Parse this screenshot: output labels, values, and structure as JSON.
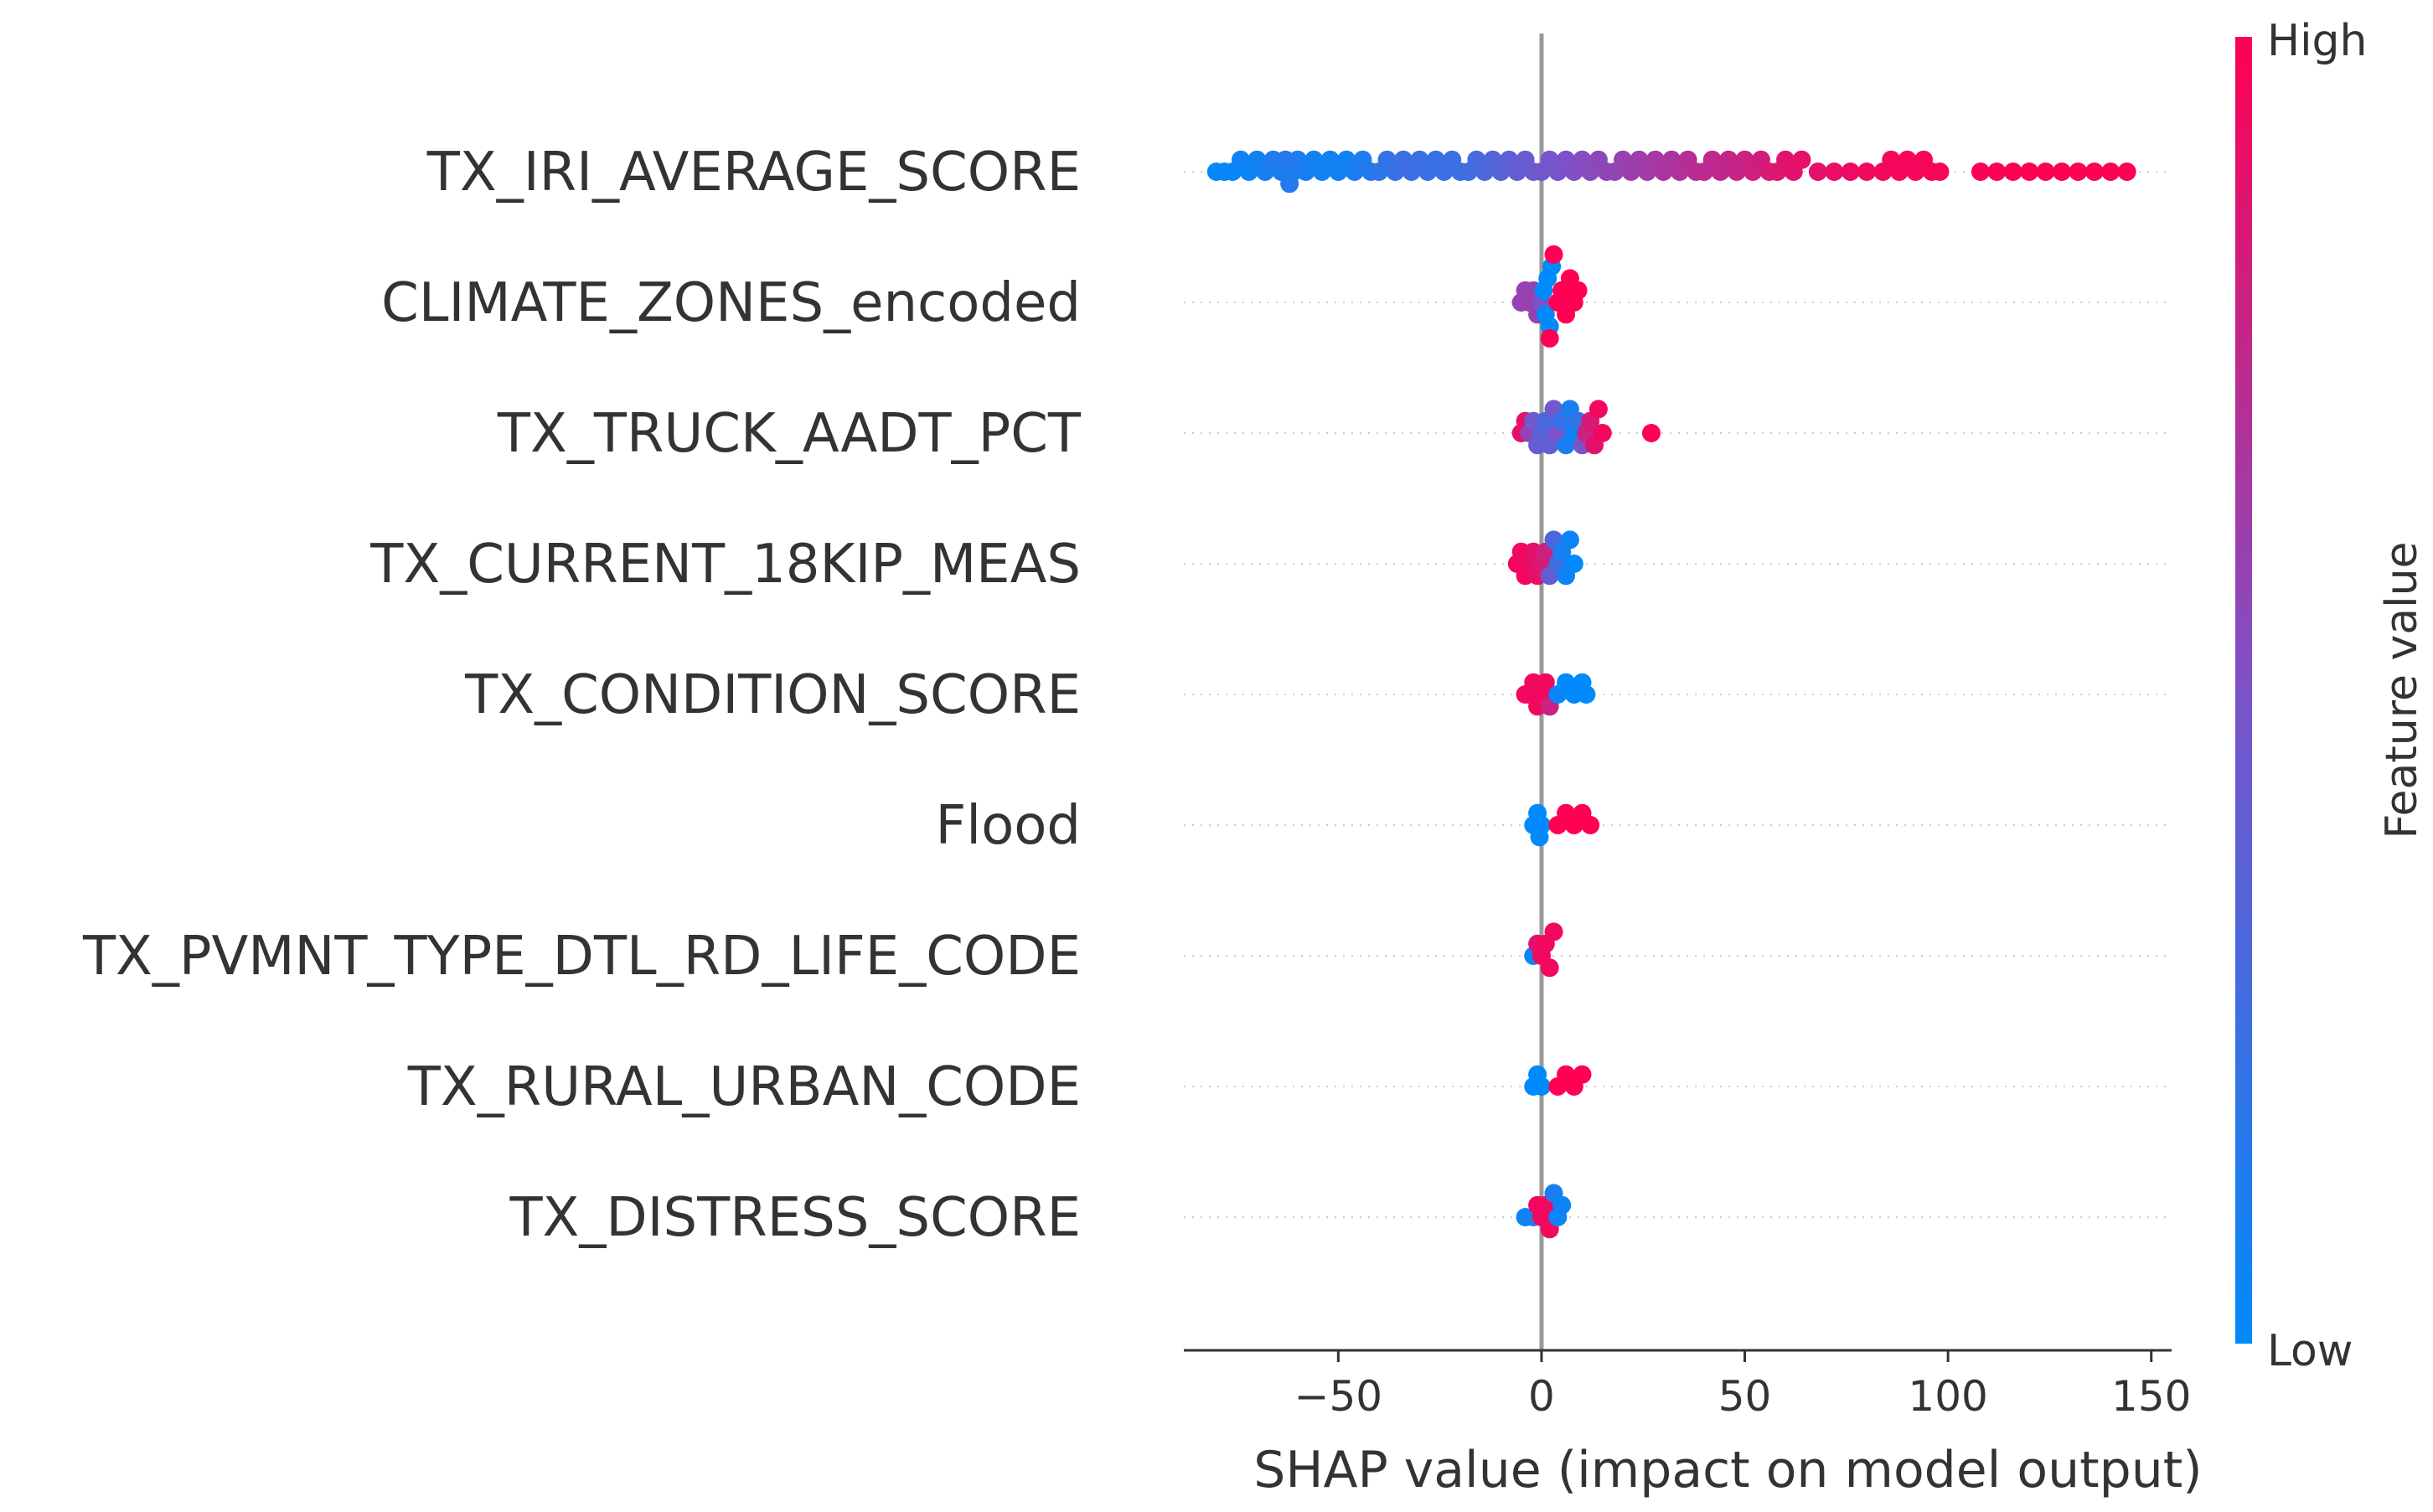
{
  "chart_data": {
    "type": "scatter",
    "subtype": "shap_beeswarm",
    "title": "",
    "xlabel": "SHAP value (impact on model output)",
    "ylabel": "",
    "xlim": [
      -88,
      155
    ],
    "xticks": [
      -50,
      0,
      50,
      100,
      150
    ],
    "xtick_labels": [
      "−50",
      "0",
      "50",
      "100",
      "150"
    ],
    "zero_line": 0,
    "colorbar": {
      "label": "Feature value",
      "high_label": "High",
      "low_label": "Low",
      "low_color": "#008afb",
      "mid_color": "#7c52c8",
      "high_color": "#ff0052"
    },
    "features": [
      {
        "name": "TX_IRI_AVERAGE_SCORE",
        "points": [
          [
            -80,
            0.02
          ],
          [
            -78,
            0.05
          ],
          [
            -76,
            0.03
          ],
          [
            -74,
            0.06
          ],
          [
            -72,
            0.05
          ],
          [
            -70,
            0.08
          ],
          [
            -68,
            0.1
          ],
          [
            -66,
            0.12
          ],
          [
            -64,
            0.1
          ],
          [
            -63,
            0.15
          ],
          [
            -62,
            0.14
          ],
          [
            -61,
            0.12
          ],
          [
            -60,
            0.13
          ],
          [
            -58,
            0.1
          ],
          [
            -56,
            0.09
          ],
          [
            -54,
            0.07
          ],
          [
            -52,
            0.06
          ],
          [
            -50,
            0.08
          ],
          [
            -48,
            0.07
          ],
          [
            -46,
            0.1
          ],
          [
            -44,
            0.12
          ],
          [
            -42,
            0.15
          ],
          [
            -40,
            0.18
          ],
          [
            -38,
            0.2
          ],
          [
            -36,
            0.22
          ],
          [
            -34,
            0.24
          ],
          [
            -32,
            0.25
          ],
          [
            -30,
            0.24
          ],
          [
            -28,
            0.23
          ],
          [
            -26,
            0.22
          ],
          [
            -24,
            0.24
          ],
          [
            -22,
            0.25
          ],
          [
            -20,
            0.23
          ],
          [
            -18,
            0.26
          ],
          [
            -16,
            0.28
          ],
          [
            -14,
            0.3
          ],
          [
            -12,
            0.33
          ],
          [
            -10,
            0.35
          ],
          [
            -8,
            0.38
          ],
          [
            -6,
            0.4
          ],
          [
            -4,
            0.42
          ],
          [
            -2,
            0.44
          ],
          [
            0,
            0.46
          ],
          [
            2,
            0.47
          ],
          [
            4,
            0.48
          ],
          [
            6,
            0.5
          ],
          [
            8,
            0.52
          ],
          [
            10,
            0.53
          ],
          [
            12,
            0.55
          ],
          [
            14,
            0.56
          ],
          [
            16,
            0.57
          ],
          [
            18,
            0.58
          ],
          [
            20,
            0.6
          ],
          [
            22,
            0.62
          ],
          [
            24,
            0.63
          ],
          [
            26,
            0.64
          ],
          [
            28,
            0.66
          ],
          [
            30,
            0.67
          ],
          [
            32,
            0.68
          ],
          [
            34,
            0.7
          ],
          [
            36,
            0.72
          ],
          [
            38,
            0.73
          ],
          [
            40,
            0.74
          ],
          [
            42,
            0.75
          ],
          [
            44,
            0.76
          ],
          [
            46,
            0.77
          ],
          [
            48,
            0.78
          ],
          [
            50,
            0.8
          ],
          [
            52,
            0.82
          ],
          [
            54,
            0.83
          ],
          [
            56,
            0.85
          ],
          [
            58,
            0.86
          ],
          [
            60,
            0.88
          ],
          [
            62,
            0.89
          ],
          [
            64,
            0.9
          ],
          [
            68,
            0.9
          ],
          [
            72,
            0.92
          ],
          [
            76,
            0.93
          ],
          [
            80,
            0.94
          ],
          [
            84,
            0.95
          ],
          [
            86,
            0.96
          ],
          [
            88,
            0.96
          ],
          [
            90,
            0.97
          ],
          [
            92,
            0.96
          ],
          [
            94,
            0.97
          ],
          [
            96,
            0.98
          ],
          [
            98,
            0.97
          ],
          [
            108,
            0.99
          ],
          [
            112,
            0.99
          ],
          [
            116,
            1.0
          ],
          [
            120,
            1.0
          ],
          [
            124,
            1.0
          ],
          [
            128,
            1.0
          ],
          [
            132,
            1.0
          ],
          [
            136,
            1.0
          ],
          [
            140,
            1.0
          ],
          [
            144,
            1.0
          ]
        ]
      },
      {
        "name": "CLIMATE_ZONES_encoded",
        "points": [
          [
            -5,
            0.6
          ],
          [
            -4,
            0.6
          ],
          [
            -3,
            0.6
          ],
          [
            -2,
            0.6
          ],
          [
            -1,
            0.6
          ],
          [
            0,
            0.5
          ],
          [
            0.5,
            0.0
          ],
          [
            1,
            0.0
          ],
          [
            1.5,
            0.0
          ],
          [
            2,
            0.0
          ],
          [
            2.5,
            0.0
          ],
          [
            2,
            1.0
          ],
          [
            3,
            1.0
          ],
          [
            4,
            1.0
          ],
          [
            5,
            1.0
          ],
          [
            6,
            1.0
          ],
          [
            7,
            1.0
          ],
          [
            8,
            1.0
          ],
          [
            9,
            1.0
          ]
        ]
      },
      {
        "name": "TX_TRUCK_AADT_PCT",
        "points": [
          [
            -5,
            0.9
          ],
          [
            -4,
            0.9
          ],
          [
            -3,
            0.6
          ],
          [
            -2,
            0.45
          ],
          [
            -1,
            0.4
          ],
          [
            0,
            0.35
          ],
          [
            1,
            0.3
          ],
          [
            2,
            0.4
          ],
          [
            3,
            0.45
          ],
          [
            4,
            0.5
          ],
          [
            5,
            0.2
          ],
          [
            6,
            0.1
          ],
          [
            7,
            0.1
          ],
          [
            8,
            0.05
          ],
          [
            9,
            0.2
          ],
          [
            10,
            0.5
          ],
          [
            11,
            0.8
          ],
          [
            12,
            0.85
          ],
          [
            13,
            0.9
          ],
          [
            14,
            0.95
          ],
          [
            15,
            0.95
          ],
          [
            27,
            1.0
          ]
        ]
      },
      {
        "name": "TX_CURRENT_18KIP_MEAS",
        "points": [
          [
            -6,
            0.95
          ],
          [
            -5,
            0.95
          ],
          [
            -4,
            0.95
          ],
          [
            -3,
            0.92
          ],
          [
            -2,
            0.9
          ],
          [
            -1,
            0.9
          ],
          [
            0,
            0.85
          ],
          [
            1,
            0.8
          ],
          [
            2,
            0.4
          ],
          [
            3,
            0.3
          ],
          [
            4,
            0.25
          ],
          [
            5,
            0.1
          ],
          [
            6,
            0.05
          ],
          [
            7,
            0.05
          ],
          [
            8,
            0.0
          ]
        ]
      },
      {
        "name": "TX_CONDITION_SCORE",
        "points": [
          [
            -4,
            0.95
          ],
          [
            -3,
            0.95
          ],
          [
            -2,
            0.95
          ],
          [
            -1,
            0.95
          ],
          [
            0,
            0.95
          ],
          [
            1,
            0.95
          ],
          [
            2,
            0.8
          ],
          [
            4,
            0.05
          ],
          [
            6,
            0.0
          ],
          [
            8,
            0.0
          ],
          [
            10,
            0.0
          ],
          [
            11,
            0.0
          ]
        ]
      },
      {
        "name": "Flood",
        "points": [
          [
            -2,
            0.0
          ],
          [
            -1,
            0.0
          ],
          [
            -0.5,
            0.0
          ],
          [
            0,
            0.0
          ],
          [
            4,
            1.0
          ],
          [
            6,
            1.0
          ],
          [
            8,
            1.0
          ],
          [
            10,
            1.0
          ],
          [
            12,
            1.0
          ]
        ]
      },
      {
        "name": "TX_PVMNT_TYPE_DTL_RD_LIFE_CODE",
        "points": [
          [
            -2,
            0.05
          ],
          [
            -1,
            0.9
          ],
          [
            0,
            0.95
          ],
          [
            1,
            0.95
          ],
          [
            2,
            0.95
          ],
          [
            3,
            0.95
          ]
        ]
      },
      {
        "name": "TX_RURAL_URBAN_CODE",
        "points": [
          [
            -2,
            0.0
          ],
          [
            -1,
            0.0
          ],
          [
            0,
            0.0
          ],
          [
            4,
            1.0
          ],
          [
            6,
            1.0
          ],
          [
            8,
            1.0
          ],
          [
            10,
            1.0
          ]
        ]
      },
      {
        "name": "TX_DISTRESS_SCORE",
        "points": [
          [
            -4,
            0.05
          ],
          [
            -2,
            0.1
          ],
          [
            -1,
            0.95
          ],
          [
            0,
            0.95
          ],
          [
            1,
            0.95
          ],
          [
            2,
            0.95
          ],
          [
            3,
            0.1
          ],
          [
            4,
            0.05
          ],
          [
            5,
            0.05
          ]
        ]
      }
    ]
  }
}
